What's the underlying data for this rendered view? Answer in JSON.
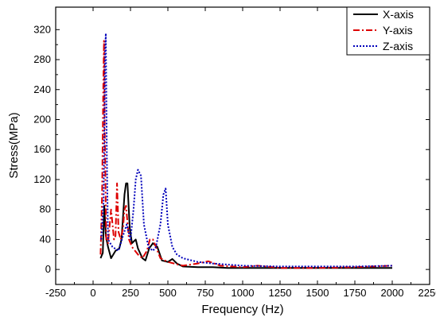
{
  "chart_data": {
    "type": "line",
    "title": "",
    "xlabel": "Frequency (Hz)",
    "ylabel": "Stress(MPa)",
    "xlim": [
      -250,
      2250
    ],
    "ylim": [
      -20,
      350
    ],
    "xticks": [
      -250,
      0,
      250,
      500,
      750,
      1000,
      1250,
      1500,
      1750,
      2000,
      2250
    ],
    "yticks": [
      0,
      40,
      80,
      120,
      160,
      200,
      240,
      280,
      320
    ],
    "grid": false,
    "legend_position": "top-right",
    "series": [
      {
        "name": "X-axis",
        "color": "#000000",
        "style": "solid",
        "points": [
          [
            50,
            15
          ],
          [
            65,
            22
          ],
          [
            75,
            85
          ],
          [
            85,
            45
          ],
          [
            100,
            30
          ],
          [
            120,
            15
          ],
          [
            150,
            25
          ],
          [
            175,
            28
          ],
          [
            190,
            40
          ],
          [
            210,
            100
          ],
          [
            220,
            115
          ],
          [
            230,
            115
          ],
          [
            245,
            55
          ],
          [
            260,
            35
          ],
          [
            285,
            40
          ],
          [
            300,
            28
          ],
          [
            330,
            15
          ],
          [
            350,
            12
          ],
          [
            375,
            28
          ],
          [
            400,
            35
          ],
          [
            430,
            30
          ],
          [
            460,
            12
          ],
          [
            500,
            10
          ],
          [
            530,
            14
          ],
          [
            560,
            8
          ],
          [
            600,
            4
          ],
          [
            700,
            3
          ],
          [
            800,
            3
          ],
          [
            900,
            2
          ],
          [
            1000,
            2
          ],
          [
            1250,
            2
          ],
          [
            1500,
            2
          ],
          [
            1750,
            2
          ],
          [
            2000,
            2
          ]
        ]
      },
      {
        "name": "Y-axis",
        "color": "#dd0000",
        "style": "dashdot",
        "points": [
          [
            50,
            20
          ],
          [
            60,
            100
          ],
          [
            68,
            240
          ],
          [
            73,
            305
          ],
          [
            78,
            180
          ],
          [
            88,
            40
          ],
          [
            100,
            35
          ],
          [
            120,
            80
          ],
          [
            140,
            40
          ],
          [
            150,
            45
          ],
          [
            160,
            115
          ],
          [
            170,
            50
          ],
          [
            185,
            40
          ],
          [
            200,
            55
          ],
          [
            210,
            80
          ],
          [
            220,
            85
          ],
          [
            240,
            40
          ],
          [
            260,
            30
          ],
          [
            300,
            20
          ],
          [
            330,
            15
          ],
          [
            360,
            25
          ],
          [
            380,
            40
          ],
          [
            400,
            40
          ],
          [
            420,
            30
          ],
          [
            450,
            15
          ],
          [
            500,
            10
          ],
          [
            600,
            5
          ],
          [
            700,
            8
          ],
          [
            770,
            11
          ],
          [
            850,
            5
          ],
          [
            1000,
            3
          ],
          [
            1100,
            5
          ],
          [
            1250,
            2
          ],
          [
            1500,
            2
          ],
          [
            1750,
            3
          ],
          [
            2000,
            5
          ]
        ]
      },
      {
        "name": "Z-axis",
        "color": "#0000bb",
        "style": "dotted",
        "points": [
          [
            55,
            40
          ],
          [
            70,
            90
          ],
          [
            80,
            290
          ],
          [
            85,
            315
          ],
          [
            92,
            150
          ],
          [
            100,
            40
          ],
          [
            130,
            30
          ],
          [
            170,
            25
          ],
          [
            200,
            45
          ],
          [
            225,
            60
          ],
          [
            250,
            40
          ],
          [
            270,
            80
          ],
          [
            285,
            120
          ],
          [
            300,
            133
          ],
          [
            320,
            125
          ],
          [
            340,
            60
          ],
          [
            370,
            30
          ],
          [
            400,
            25
          ],
          [
            420,
            30
          ],
          [
            450,
            60
          ],
          [
            470,
            100
          ],
          [
            485,
            108
          ],
          [
            500,
            60
          ],
          [
            530,
            30
          ],
          [
            560,
            20
          ],
          [
            600,
            15
          ],
          [
            700,
            10
          ],
          [
            800,
            8
          ],
          [
            1000,
            5
          ],
          [
            1250,
            4
          ],
          [
            1500,
            4
          ],
          [
            1750,
            4
          ],
          [
            2000,
            5
          ]
        ]
      }
    ]
  }
}
